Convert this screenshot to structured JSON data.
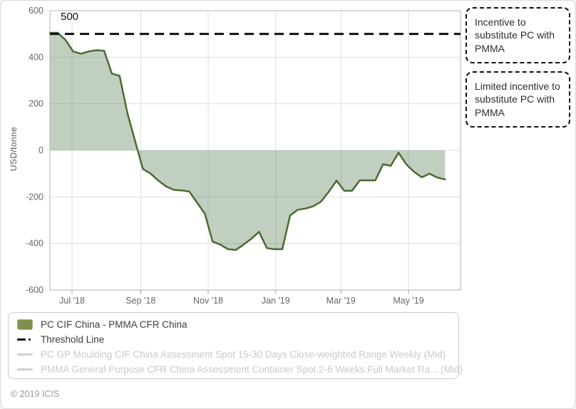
{
  "figure": {
    "copyright": "© 2019 ICIS"
  },
  "annotations": [
    {
      "text": "Incentive to substitute PC with PMMA"
    },
    {
      "text": "Limited incentive to substitute PC with PMMA"
    }
  ],
  "legend": {
    "items": [
      {
        "type": "area",
        "label": "PC CIF China - PMMA CFR China",
        "color": "#7e914e",
        "muted": false
      },
      {
        "type": "dashdot",
        "label": "Threshold Line",
        "color": "#111111",
        "muted": false
      },
      {
        "type": "line",
        "label": "PC GP Moulding CIF China Assessment Spot 15-30 Days Close-weighted Range Weekly (Mid)",
        "color": "#d0d0d0",
        "muted": true
      },
      {
        "type": "line",
        "label": "PMMA General Purpose CFR China Assessment Container Spot 2-6 Weeks Full Market Ra... (Mid)",
        "color": "#d0d0d0",
        "muted": true
      }
    ]
  },
  "chart_data": {
    "type": "area",
    "series_name": "PC CIF China - PMMA CFR China",
    "ylabel": "USD/tonne",
    "ylim": [
      -600,
      600
    ],
    "yticks": [
      600,
      400,
      200,
      0,
      -200,
      -400,
      -600
    ],
    "x_domain": [
      "2018-06-11",
      "2019-06-17"
    ],
    "xticks": [
      {
        "date": "2018-07-01",
        "label": "Jul '18"
      },
      {
        "date": "2018-09-01",
        "label": "Sep '18"
      },
      {
        "date": "2018-11-01",
        "label": "Nov '18"
      },
      {
        "date": "2019-01-01",
        "label": "Jan '19"
      },
      {
        "date": "2019-03-01",
        "label": "Mar '19"
      },
      {
        "date": "2019-05-01",
        "label": "May '19"
      }
    ],
    "threshold": {
      "value": 500,
      "label": "500"
    },
    "x_dates": [
      "2018-06-11",
      "2018-06-18",
      "2018-06-25",
      "2018-07-02",
      "2018-07-09",
      "2018-07-16",
      "2018-07-23",
      "2018-07-30",
      "2018-08-06",
      "2018-08-13",
      "2018-08-20",
      "2018-08-27",
      "2018-09-03",
      "2018-09-10",
      "2018-09-17",
      "2018-09-24",
      "2018-10-01",
      "2018-10-08",
      "2018-10-15",
      "2018-10-22",
      "2018-10-29",
      "2018-11-05",
      "2018-11-12",
      "2018-11-19",
      "2018-11-26",
      "2018-12-03",
      "2018-12-10",
      "2018-12-17",
      "2018-12-24",
      "2018-12-31",
      "2019-01-07",
      "2019-01-14",
      "2019-01-21",
      "2019-01-28",
      "2019-02-04",
      "2019-02-11",
      "2019-02-18",
      "2019-02-25",
      "2019-03-04",
      "2019-03-11",
      "2019-03-18",
      "2019-03-25",
      "2019-04-01",
      "2019-04-08",
      "2019-04-15",
      "2019-04-22",
      "2019-04-29",
      "2019-05-06",
      "2019-05-13",
      "2019-05-20",
      "2019-05-27",
      "2019-06-03"
    ],
    "values": [
      505,
      505,
      475,
      425,
      415,
      425,
      430,
      428,
      330,
      320,
      160,
      40,
      -80,
      -100,
      -130,
      -155,
      -170,
      -172,
      -177,
      -225,
      -272,
      -392,
      -405,
      -425,
      -428,
      -405,
      -380,
      -350,
      -420,
      -425,
      -425,
      -280,
      -255,
      -250,
      -240,
      -220,
      -178,
      -130,
      -174,
      -174,
      -129,
      -129,
      -129,
      -60,
      -66,
      -10,
      -60,
      -92,
      -116,
      -100,
      -117,
      -125
    ],
    "colors": {
      "line": "#4a6b30",
      "fill": "rgba(77,118,77,0.35)",
      "threshold": "#101010",
      "grid": "#dddddd",
      "plot_border": "#b3b3b3",
      "tick_text": "#666666"
    },
    "grid": true,
    "legend_position": "bottom"
  }
}
